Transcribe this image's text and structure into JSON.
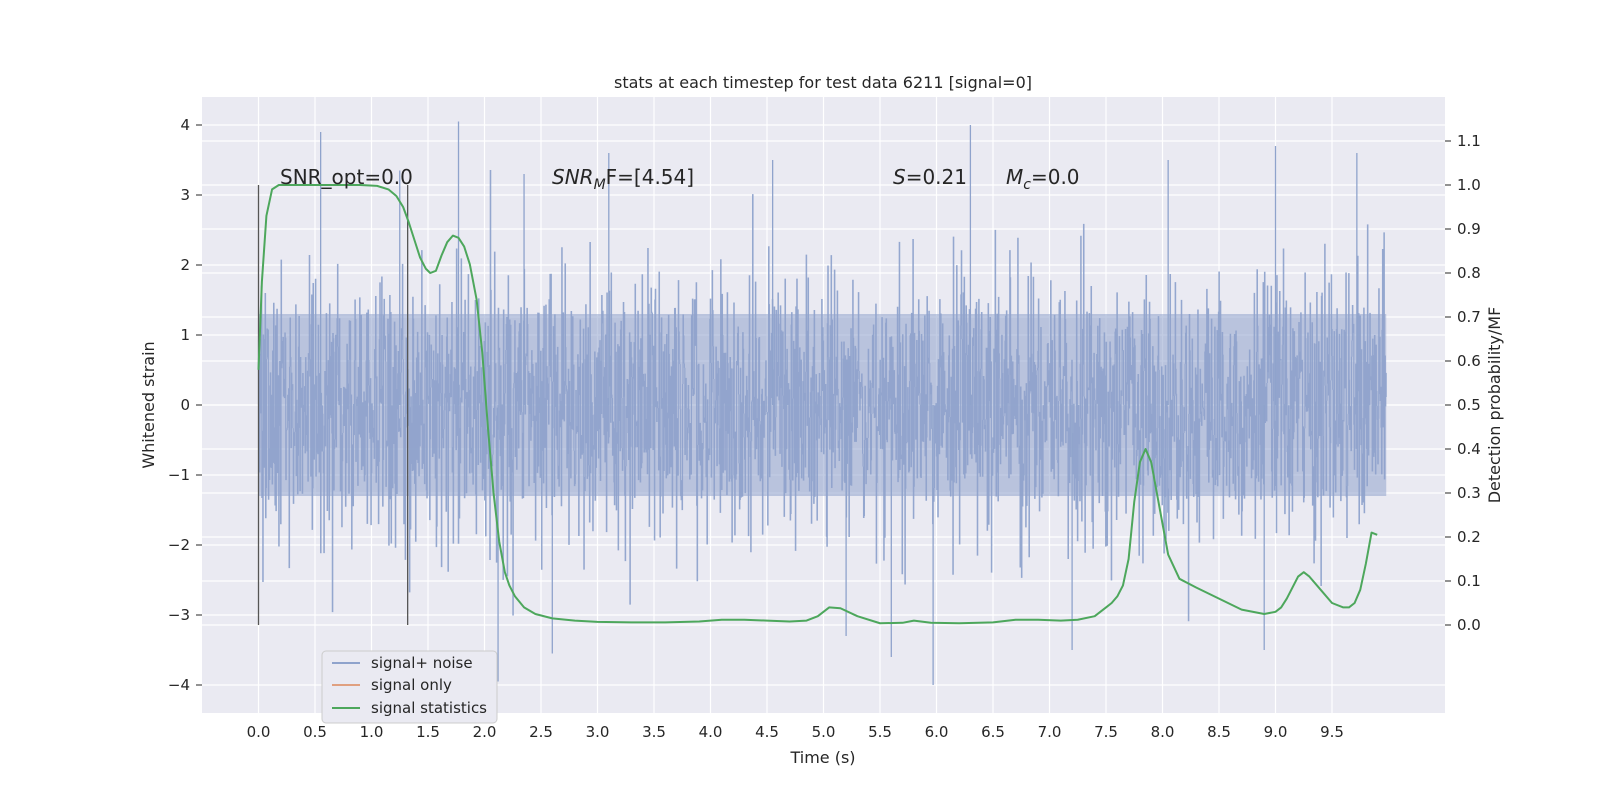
{
  "chart_data": {
    "type": "line",
    "title": "stats at each timestep for test data 6211 [signal=0]",
    "xlabel": "Time (s)",
    "ylabel": "Whitened strain",
    "ylabel_right": "Detection probability/MF",
    "xlim": [
      -0.5,
      10.5
    ],
    "ylim": [
      -4.4,
      4.4
    ],
    "ylim_right": [
      -0.2,
      1.2
    ],
    "x_ticks": [
      "0.0",
      "0.5",
      "1.0",
      "1.5",
      "2.0",
      "2.5",
      "3.0",
      "3.5",
      "4.0",
      "4.5",
      "5.0",
      "5.5",
      "6.0",
      "6.5",
      "7.0",
      "7.5",
      "8.0",
      "8.5",
      "9.0",
      "9.5"
    ],
    "y_ticks": [
      "4",
      "3",
      "2",
      "1",
      "0",
      "−1",
      "−2",
      "−3",
      "−4"
    ],
    "y_right_ticks": [
      "1.1",
      "1.0",
      "0.9",
      "0.8",
      "0.7",
      "0.6",
      "0.5",
      "0.4",
      "0.3",
      "0.2",
      "0.1",
      "0.0"
    ],
    "grid": true,
    "legend_position": "lower-left",
    "annotations": {
      "snr_opt": "SNR_opt=0.0",
      "snr_mf_main": "SNR",
      "snr_mf_sub": "M",
      "snr_mf_rest": "F=[4.54]",
      "s_main": "S",
      "s_rest": "=0.21",
      "mc_main": "M",
      "mc_sub": "c",
      "mc_rest": "=0.0"
    },
    "window_lines_x": [
      0.0,
      1.32
    ],
    "series": [
      {
        "name": "signal+ noise",
        "color": "#8fa3cc",
        "x_range": [
          0.0,
          9.98
        ],
        "y_core_range": [
          -1.3,
          1.3
        ],
        "y_range": [
          -4.0,
          4.05
        ],
        "spikes": [
          {
            "x": 0.55,
            "y": 3.9
          },
          {
            "x": 1.77,
            "y": 4.05
          },
          {
            "x": 2.12,
            "y": -3.95
          },
          {
            "x": 2.35,
            "y": 3.3
          },
          {
            "x": 2.6,
            "y": -3.55
          },
          {
            "x": 3.1,
            "y": 3.6
          },
          {
            "x": 4.55,
            "y": 3.5
          },
          {
            "x": 5.6,
            "y": -3.6
          },
          {
            "x": 6.3,
            "y": 4.0
          },
          {
            "x": 5.97,
            "y": -4.0
          },
          {
            "x": 7.2,
            "y": -3.5
          },
          {
            "x": 8.05,
            "y": 3.5
          },
          {
            "x": 9.0,
            "y": 3.7
          },
          {
            "x": 9.72,
            "y": 3.6
          },
          {
            "x": 5.2,
            "y": -3.3
          },
          {
            "x": 1.25,
            "y": 3.35
          },
          {
            "x": 8.9,
            "y": -3.5
          }
        ]
      },
      {
        "name": "signal only",
        "color": "#e0a080",
        "x": [],
        "y": []
      },
      {
        "name": "signal statistics",
        "color": "#4da75c",
        "axis": "right",
        "x": [
          0.0,
          0.03,
          0.07,
          0.12,
          0.18,
          0.25,
          0.35,
          0.5,
          0.7,
          0.9,
          1.05,
          1.15,
          1.22,
          1.28,
          1.33,
          1.38,
          1.43,
          1.48,
          1.52,
          1.57,
          1.62,
          1.67,
          1.72,
          1.77,
          1.82,
          1.87,
          1.93,
          1.98,
          2.03,
          2.08,
          2.13,
          2.18,
          2.22,
          2.27,
          2.35,
          2.45,
          2.6,
          2.8,
          3.0,
          3.3,
          3.6,
          3.9,
          4.1,
          4.3,
          4.5,
          4.7,
          4.85,
          4.95,
          5.05,
          5.15,
          5.3,
          5.5,
          5.7,
          5.8,
          5.95,
          6.2,
          6.5,
          6.7,
          6.9,
          7.1,
          7.25,
          7.4,
          7.5,
          7.55,
          7.6,
          7.65,
          7.7,
          7.75,
          7.8,
          7.85,
          7.9,
          7.95,
          8.05,
          8.15,
          8.3,
          8.5,
          8.7,
          8.9,
          9.0,
          9.05,
          9.1,
          9.15,
          9.2,
          9.25,
          9.3,
          9.4,
          9.5,
          9.6,
          9.65,
          9.7,
          9.75,
          9.8,
          9.85,
          9.9
        ],
        "y": [
          0.58,
          0.78,
          0.93,
          0.99,
          1.0,
          1.0,
          1.0,
          1.0,
          1.0,
          1.0,
          0.998,
          0.99,
          0.975,
          0.95,
          0.915,
          0.875,
          0.835,
          0.81,
          0.8,
          0.805,
          0.84,
          0.87,
          0.885,
          0.88,
          0.86,
          0.82,
          0.74,
          0.62,
          0.45,
          0.3,
          0.19,
          0.12,
          0.09,
          0.065,
          0.04,
          0.025,
          0.015,
          0.01,
          0.007,
          0.006,
          0.006,
          0.008,
          0.012,
          0.012,
          0.01,
          0.008,
          0.01,
          0.02,
          0.04,
          0.038,
          0.02,
          0.004,
          0.005,
          0.01,
          0.005,
          0.004,
          0.006,
          0.012,
          0.012,
          0.01,
          0.012,
          0.02,
          0.04,
          0.05,
          0.065,
          0.09,
          0.15,
          0.28,
          0.37,
          0.4,
          0.37,
          0.3,
          0.16,
          0.105,
          0.085,
          0.06,
          0.035,
          0.025,
          0.03,
          0.04,
          0.06,
          0.085,
          0.11,
          0.12,
          0.11,
          0.08,
          0.05,
          0.04,
          0.04,
          0.05,
          0.08,
          0.14,
          0.21,
          0.205
        ]
      }
    ]
  },
  "legend": {
    "items": [
      {
        "label": "signal+ noise",
        "color": "#8fa3cc"
      },
      {
        "label": "signal only",
        "color": "#e0a080"
      },
      {
        "label": "signal statistics",
        "color": "#4da75c"
      }
    ]
  },
  "colors": {
    "plot_bg": "#eaeaf2",
    "grid": "#ffffff",
    "text": "#262626",
    "window_line": "#555555"
  }
}
